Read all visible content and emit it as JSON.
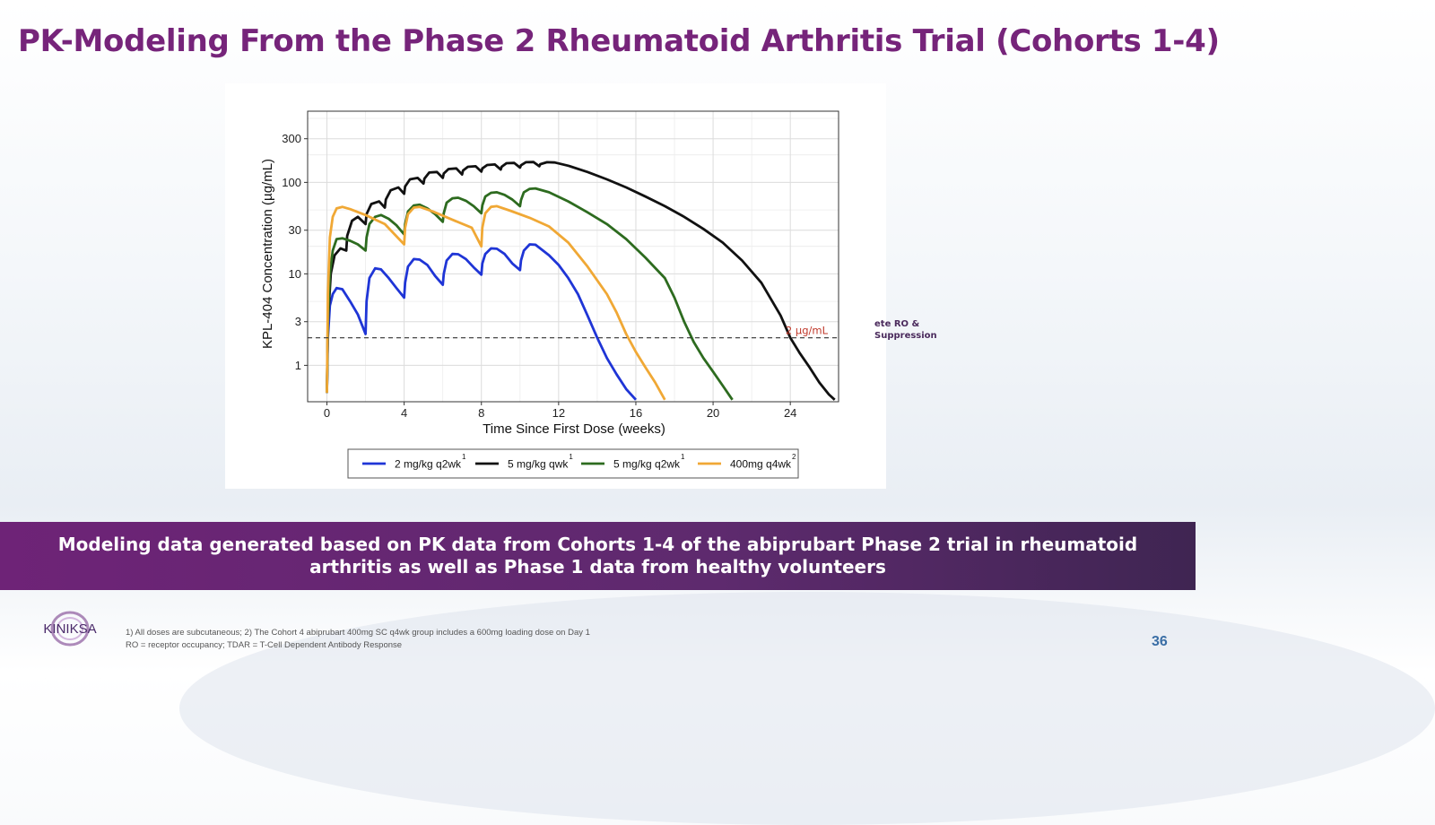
{
  "slide": {
    "title": "PK-Modeling From the Phase 2 Rheumatoid Arthritis Trial (Cohorts 1-4)",
    "banner_text": "Modeling data generated based on PK data from Cohorts 1-4 of the abiprubart Phase 2 trial in rheumatoid arthritis as well as Phase 1 data from healthy volunteers",
    "side_note_line1": "ete RO &",
    "side_note_line2": "Suppression",
    "footnote_line1": "1) All doses are subcutaneous; 2) The Cohort 4 abiprubart 400mg SC q4wk group includes a 600mg loading dose on Day 1",
    "footnote_line2": "RO = receptor occupancy; TDAR = T-Cell Dependent Antibody Response",
    "page_number": "36",
    "logo_text": "KINIKSA",
    "accent_color": "#76247a",
    "banner_color": "#6e2377"
  },
  "chart_data": {
    "type": "line",
    "title": "",
    "xlabel": "Time Since First Dose (weeks)",
    "ylabel": "KPL-404 Concentration (µg/mL)",
    "x_scale": "linear",
    "y_scale": "log",
    "xlim": [
      -1,
      26.5
    ],
    "ylim": [
      0.4,
      600
    ],
    "x_ticks": [
      0,
      4,
      8,
      12,
      16,
      20,
      24
    ],
    "y_ticks": [
      1,
      3,
      10,
      30,
      100,
      300
    ],
    "grid": true,
    "legend_position": "bottom",
    "reference_line": {
      "y": 2,
      "label": "2 µg/mL",
      "style": "dashed"
    },
    "series": [
      {
        "name": "2 mg/kg q2wk",
        "superscript": "1",
        "color": "#1f35d6",
        "points": [
          [
            0,
            0.5
          ],
          [
            0.05,
            2
          ],
          [
            0.15,
            4.5
          ],
          [
            0.3,
            6
          ],
          [
            0.5,
            7
          ],
          [
            0.8,
            6.8
          ],
          [
            1.2,
            5
          ],
          [
            1.6,
            3.6
          ],
          [
            2,
            2.2
          ],
          [
            2.05,
            5
          ],
          [
            2.2,
            9
          ],
          [
            2.5,
            11.5
          ],
          [
            2.8,
            11.2
          ],
          [
            3.2,
            9
          ],
          [
            3.6,
            7
          ],
          [
            4,
            5.5
          ],
          [
            4.05,
            8
          ],
          [
            4.2,
            12
          ],
          [
            4.5,
            14.5
          ],
          [
            4.8,
            14.3
          ],
          [
            5.2,
            12.5
          ],
          [
            5.6,
            9.5
          ],
          [
            6,
            7.6
          ],
          [
            6.05,
            10
          ],
          [
            6.2,
            14
          ],
          [
            6.5,
            16.5
          ],
          [
            6.8,
            16.4
          ],
          [
            7.2,
            14.5
          ],
          [
            7.6,
            11.8
          ],
          [
            8,
            9.8
          ],
          [
            8.05,
            13
          ],
          [
            8.2,
            16.5
          ],
          [
            8.5,
            19
          ],
          [
            8.8,
            18.8
          ],
          [
            9.2,
            16.5
          ],
          [
            9.6,
            13
          ],
          [
            10,
            11
          ],
          [
            10.05,
            14
          ],
          [
            10.2,
            18
          ],
          [
            10.5,
            21
          ],
          [
            10.8,
            20.8
          ],
          [
            11.5,
            16
          ],
          [
            12,
            12.5
          ],
          [
            12.5,
            9
          ],
          [
            13,
            6
          ],
          [
            13.5,
            3.5
          ],
          [
            14,
            2
          ],
          [
            14.5,
            1.2
          ],
          [
            15,
            0.8
          ],
          [
            15.5,
            0.55
          ],
          [
            16,
            0.42
          ]
        ]
      },
      {
        "name": "5 mg/kg qwk",
        "superscript": "1",
        "color": "#111111",
        "points": [
          [
            0,
            0.5
          ],
          [
            0.05,
            3
          ],
          [
            0.2,
            10
          ],
          [
            0.4,
            16
          ],
          [
            0.7,
            19
          ],
          [
            1,
            18
          ],
          [
            1.05,
            26
          ],
          [
            1.3,
            38
          ],
          [
            1.6,
            42
          ],
          [
            2,
            35
          ],
          [
            2.05,
            45
          ],
          [
            2.3,
            58
          ],
          [
            2.7,
            62
          ],
          [
            3,
            53
          ],
          [
            3.05,
            65
          ],
          [
            3.3,
            82
          ],
          [
            3.7,
            88
          ],
          [
            4,
            75
          ],
          [
            4.05,
            90
          ],
          [
            4.3,
            108
          ],
          [
            4.7,
            112
          ],
          [
            5,
            97
          ],
          [
            5.05,
            110
          ],
          [
            5.3,
            128
          ],
          [
            5.7,
            130
          ],
          [
            6,
            112
          ],
          [
            6.05,
            125
          ],
          [
            6.3,
            140
          ],
          [
            6.7,
            142
          ],
          [
            7,
            122
          ],
          [
            7.05,
            135
          ],
          [
            7.3,
            148
          ],
          [
            7.7,
            150
          ],
          [
            8,
            131
          ],
          [
            8.05,
            142
          ],
          [
            8.3,
            155
          ],
          [
            8.7,
            157
          ],
          [
            9,
            138
          ],
          [
            9.05,
            148
          ],
          [
            9.3,
            162
          ],
          [
            9.7,
            163
          ],
          [
            10,
            145
          ],
          [
            10.05,
            154
          ],
          [
            10.3,
            166
          ],
          [
            10.7,
            167
          ],
          [
            11,
            150
          ],
          [
            11.05,
            158
          ],
          [
            11.4,
            166
          ],
          [
            11.8,
            165
          ],
          [
            12.5,
            152
          ],
          [
            13.5,
            130
          ],
          [
            14.5,
            108
          ],
          [
            15.5,
            88
          ],
          [
            16.5,
            70
          ],
          [
            17.5,
            55
          ],
          [
            18.5,
            42
          ],
          [
            19.5,
            31
          ],
          [
            20.5,
            22
          ],
          [
            21.5,
            14
          ],
          [
            22.5,
            8
          ],
          [
            23.5,
            3.5
          ],
          [
            24,
            2
          ],
          [
            24.5,
            1.35
          ],
          [
            25,
            0.95
          ],
          [
            25.5,
            0.65
          ],
          [
            26,
            0.48
          ],
          [
            26.3,
            0.42
          ]
        ]
      },
      {
        "name": "5 mg/kg q2wk",
        "superscript": "1",
        "color": "#2d6b1f",
        "points": [
          [
            0,
            0.5
          ],
          [
            0.05,
            3
          ],
          [
            0.15,
            10
          ],
          [
            0.3,
            18
          ],
          [
            0.5,
            24
          ],
          [
            0.8,
            24.5
          ],
          [
            1.2,
            23
          ],
          [
            1.6,
            21
          ],
          [
            2,
            18
          ],
          [
            2.05,
            25
          ],
          [
            2.2,
            35
          ],
          [
            2.5,
            42
          ],
          [
            2.8,
            44
          ],
          [
            3.2,
            40
          ],
          [
            3.6,
            34
          ],
          [
            4,
            27
          ],
          [
            4.05,
            35
          ],
          [
            4.2,
            48
          ],
          [
            4.5,
            56
          ],
          [
            4.8,
            57
          ],
          [
            5.2,
            52
          ],
          [
            5.6,
            45
          ],
          [
            6,
            37
          ],
          [
            6.05,
            46
          ],
          [
            6.2,
            60
          ],
          [
            6.5,
            67
          ],
          [
            6.8,
            68
          ],
          [
            7.2,
            63
          ],
          [
            7.6,
            55
          ],
          [
            8,
            46
          ],
          [
            8.05,
            56
          ],
          [
            8.2,
            70
          ],
          [
            8.5,
            77
          ],
          [
            8.8,
            78
          ],
          [
            9.2,
            73
          ],
          [
            9.6,
            65
          ],
          [
            10,
            55
          ],
          [
            10.05,
            64
          ],
          [
            10.2,
            78
          ],
          [
            10.5,
            85
          ],
          [
            10.8,
            86
          ],
          [
            11.5,
            78
          ],
          [
            12.5,
            62
          ],
          [
            13.5,
            47
          ],
          [
            14.5,
            35
          ],
          [
            15.5,
            24
          ],
          [
            16.5,
            15
          ],
          [
            17.5,
            9
          ],
          [
            18,
            5.5
          ],
          [
            18.5,
            3
          ],
          [
            19,
            1.8
          ],
          [
            19.5,
            1.2
          ],
          [
            20,
            0.85
          ],
          [
            20.5,
            0.6
          ],
          [
            21,
            0.42
          ]
        ]
      },
      {
        "name": "400mg q4wk",
        "superscript": "2",
        "color": "#f0a835",
        "points": [
          [
            0,
            0.5
          ],
          [
            0.05,
            6
          ],
          [
            0.15,
            25
          ],
          [
            0.3,
            42
          ],
          [
            0.5,
            52
          ],
          [
            0.8,
            54
          ],
          [
            1.2,
            51
          ],
          [
            2,
            44
          ],
          [
            3,
            35
          ],
          [
            4,
            21
          ],
          [
            4.05,
            32
          ],
          [
            4.2,
            45
          ],
          [
            4.5,
            53
          ],
          [
            4.8,
            54
          ],
          [
            5.5,
            48
          ],
          [
            6.5,
            39
          ],
          [
            7.5,
            32
          ],
          [
            8,
            20
          ],
          [
            8.05,
            32
          ],
          [
            8.2,
            46
          ],
          [
            8.5,
            54
          ],
          [
            8.8,
            55
          ],
          [
            9.5,
            49
          ],
          [
            10.5,
            41
          ],
          [
            11.5,
            33
          ],
          [
            12.5,
            22
          ],
          [
            13.5,
            12
          ],
          [
            14.5,
            6
          ],
          [
            15,
            3.8
          ],
          [
            15.5,
            2.2
          ],
          [
            16,
            1.4
          ],
          [
            16.5,
            0.95
          ],
          [
            17,
            0.65
          ],
          [
            17.5,
            0.42
          ]
        ]
      }
    ]
  }
}
